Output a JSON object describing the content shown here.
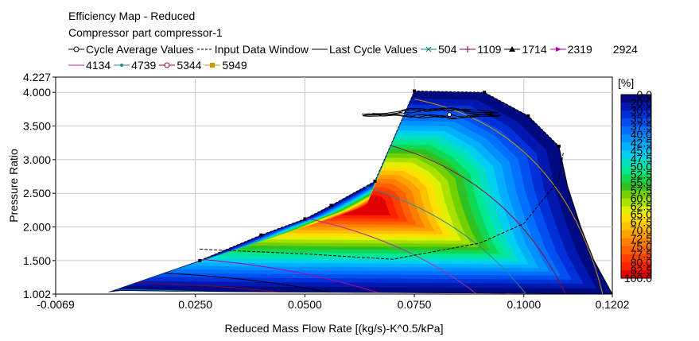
{
  "chart_data": {
    "type": "heatmap",
    "title": "Efficiency Map - Reduced",
    "subtitle": "Compressor part compressor-1",
    "xlabel": "Reduced Mass Flow Rate [(kg/s)-K^0.5/kPa]",
    "ylabel": "Pressure Ratio",
    "xlim": [
      -0.0069,
      0.1202
    ],
    "ylim": [
      1.002,
      4.227
    ],
    "x_ticks": [
      "-0.0069",
      "0.0250",
      "0.0500",
      "0.0750",
      "0.1000",
      "0.1202"
    ],
    "x_tick_values": [
      -0.0069,
      0.025,
      0.05,
      0.075,
      0.1,
      0.1202
    ],
    "y_ticks": [
      "1.002",
      "1.500",
      "2.000",
      "2.500",
      "3.000",
      "3.500",
      "4.000",
      "4.227"
    ],
    "y_tick_values": [
      1.002,
      1.5,
      2.0,
      2.5,
      3.0,
      3.5,
      4.0,
      4.227
    ],
    "legend_lines": [
      {
        "label": "Cycle Average Values",
        "style": "circle-line"
      },
      {
        "label": "Input Data Window",
        "style": "dashed"
      },
      {
        "label": "Last Cycle Values",
        "style": "solid"
      }
    ],
    "speed_lines": [
      {
        "label": "504",
        "color": "#0e7c86",
        "marker": "x"
      },
      {
        "label": "1109",
        "color": "#7a0040",
        "marker": "plus"
      },
      {
        "label": "1714",
        "color": "#000000",
        "marker": "triangle"
      },
      {
        "label": "2319",
        "color": "#b0009a",
        "marker": "arrow"
      },
      {
        "label": "2924",
        "color": "#ffffff",
        "marker": "none"
      },
      {
        "label": "4134",
        "color": "#b0309a",
        "marker": "dash"
      },
      {
        "label": "4739",
        "color": "#2a8a8a",
        "marker": "dot"
      },
      {
        "label": "5344",
        "color": "#8b0a3a",
        "marker": "circle"
      },
      {
        "label": "5949",
        "color": "#c89a00",
        "marker": "square"
      }
    ],
    "colorbar": {
      "unit": "[%]",
      "labels": [
        "0.0",
        "20.0",
        "30.0",
        "35.0",
        "37.5",
        "40.0",
        "42.5",
        "45.0",
        "47.5",
        "50.0",
        "52.5",
        "55.0",
        "57.5",
        "60.0",
        "62.5",
        "65.0",
        "67.5",
        "70.0",
        "72.5",
        "75.0",
        "77.5",
        "80.0",
        "82.5",
        "100.0"
      ],
      "colors": [
        "#000a80",
        "#0018b0",
        "#0030d8",
        "#0050f0",
        "#0070ff",
        "#0090ff",
        "#00b0ff",
        "#00d0f0",
        "#00e0c0",
        "#00e890",
        "#10d850",
        "#30c020",
        "#70d000",
        "#a8e000",
        "#e0f000",
        "#ffe000",
        "#ffc000",
        "#ffa000",
        "#ff8000",
        "#ff6000",
        "#ff4000",
        "#ff2000",
        "#e00000"
      ]
    },
    "surge_line": {
      "x": [
        0.026,
        0.04,
        0.05,
        0.056,
        0.066,
        0.075,
        0.091,
        0.101,
        0.108
      ],
      "y": [
        1.5,
        1.88,
        2.12,
        2.32,
        2.68,
        4.02,
        4.0,
        3.65,
        3.2
      ]
    },
    "choke_line": {
      "x": [
        0.108,
        0.11,
        0.113,
        0.116,
        0.1202
      ],
      "y": [
        3.2,
        2.6,
        2.0,
        1.5,
        1.002
      ]
    },
    "lower_boundary": {
      "x": [
        0.1202,
        0.1,
        0.07,
        0.04,
        0.02,
        0.008,
        0.005
      ],
      "y": [
        1.002,
        1.01,
        1.02,
        1.03,
        1.04,
        1.05,
        1.03
      ]
    },
    "input_window": {
      "x": [
        0.026,
        0.05,
        0.07,
        0.09,
        0.1,
        0.108,
        0.109
      ],
      "y": [
        1.67,
        1.6,
        1.52,
        1.76,
        2.05,
        2.7,
        3.1
      ]
    },
    "cycle_avg_point": {
      "x": 0.083,
      "y": 3.67
    }
  }
}
